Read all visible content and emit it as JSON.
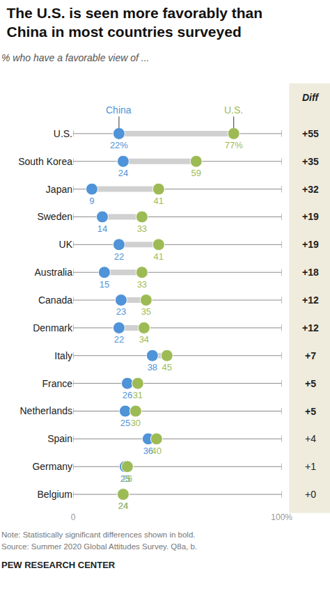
{
  "chart_data": {
    "type": "dumbbell",
    "title": "The U.S. is seen more favorably than China in most countries surveyed",
    "subtitle": "% who have a favorable view of ...",
    "orientation": "horizontal",
    "data_labels": true,
    "categories": [
      "U.S.",
      "South Korea",
      "Japan",
      "Sweden",
      "UK",
      "Australia",
      "Canada",
      "Denmark",
      "Italy",
      "France",
      "Netherlands",
      "Spain",
      "Germany",
      "Belgium"
    ],
    "series": [
      {
        "name": "China",
        "color": "#4f93d8",
        "values": [
          22,
          24,
          9,
          14,
          22,
          15,
          23,
          22,
          38,
          26,
          25,
          36,
          25,
          24
        ],
        "value_labels": [
          "22%",
          "24",
          "9",
          "14",
          "22",
          "15",
          "23",
          "22",
          "38",
          "26",
          "25",
          "36",
          "25",
          "24"
        ]
      },
      {
        "name": "U.S.",
        "color": "#9dbb55",
        "values": [
          77,
          59,
          41,
          33,
          41,
          33,
          35,
          34,
          45,
          31,
          30,
          40,
          26,
          24
        ],
        "value_labels": [
          "77%",
          "59",
          "41",
          "33",
          "41",
          "33",
          "35",
          "34",
          "45",
          "31",
          "30",
          "40",
          "26",
          "24"
        ]
      }
    ],
    "diff_title": "Diff",
    "diff_labels": [
      "+55",
      "+35",
      "+32",
      "+19",
      "+19",
      "+18",
      "+12",
      "+12",
      "+7",
      "+5",
      "+5",
      "+4",
      "+1",
      "+0"
    ],
    "significant": [
      true,
      true,
      true,
      true,
      true,
      true,
      true,
      true,
      true,
      true,
      true,
      false,
      false,
      false
    ],
    "xlim": [
      0,
      100
    ],
    "xticks": [
      0,
      {
        "value": 100,
        "label": "100%"
      }
    ],
    "note": "Note: Statistically significant differences shown in bold.",
    "source": "Source: Summer 2020 Global Attitudes Survey. Q8a, b.",
    "credit": "PEW RESEARCH CENTER"
  }
}
